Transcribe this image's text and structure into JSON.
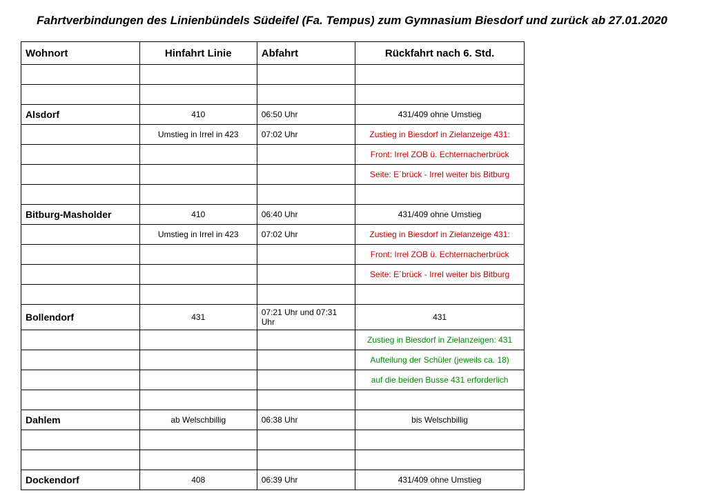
{
  "title": "Fahrtverbindungen des Linienbündels Südeifel (Fa. Tempus) zum Gymnasium Biesdorf und zurück ab 27.01.2020",
  "headers": {
    "wohnort": "Wohnort",
    "hinfahrt": "Hinfahrt Linie",
    "abfahrt": "Abfahrt",
    "rueckfahrt": "Rückfahrt nach 6. Std."
  },
  "rows": [
    {
      "c1": "",
      "c2": "",
      "c3": "",
      "c4": "",
      "cls": ""
    },
    {
      "c1": "",
      "c2": "",
      "c3": "",
      "c4": "",
      "cls": ""
    },
    {
      "c1": "Alsdorf",
      "c2": "410",
      "c3": "06:50 Uhr",
      "c4": "431/409 ohne Umstieg",
      "c1cls": "bold",
      "c2cls": "center",
      "c4cls": "center"
    },
    {
      "c1": "",
      "c2": "Umstieg in Irrel in 423",
      "c3": "07:02 Uhr",
      "c4": "Zustieg in Biesdorf in Zielanzeige 431:",
      "c2cls": "center",
      "c4cls": "center red"
    },
    {
      "c1": "",
      "c2": "",
      "c3": "",
      "c4": "Front: Irrel ZOB ü. Echternacherbrück",
      "c4cls": "center red"
    },
    {
      "c1": "",
      "c2": "",
      "c3": "",
      "c4": "Seite: E´brück - Irrel weiter bis Bitburg",
      "c4cls": "center red"
    },
    {
      "c1": "",
      "c2": "",
      "c3": "",
      "c4": "",
      "cls": ""
    },
    {
      "c1": "Bitburg-Masholder",
      "c2": "410",
      "c3": "06:40 Uhr",
      "c4": "431/409 ohne Umstieg",
      "c1cls": "bold",
      "c2cls": "center",
      "c4cls": "center"
    },
    {
      "c1": "",
      "c2": "Umstieg in Irrel in 423",
      "c3": "07:02 Uhr",
      "c4": "Zustieg in Biesdorf in Zielanzeige 431:",
      "c2cls": "center",
      "c4cls": "center red"
    },
    {
      "c1": "",
      "c2": "",
      "c3": "",
      "c4": "Front: Irrel ZOB ü. Echternacherbrück",
      "c4cls": "center red"
    },
    {
      "c1": "",
      "c2": "",
      "c3": "",
      "c4": "Seite: E´brück - Irrel weiter bis Bitburg",
      "c4cls": "center red"
    },
    {
      "c1": "",
      "c2": "",
      "c3": "",
      "c4": "",
      "cls": ""
    },
    {
      "c1": "Bollendorf",
      "c2": "431",
      "c3": "07:21 Uhr und 07:31 Uhr",
      "c4": "431",
      "c1cls": "bold",
      "c2cls": "center",
      "c4cls": "center"
    },
    {
      "c1": "",
      "c2": "",
      "c3": "",
      "c4": "Zustieg in Biesdorf in Zielanzeigen: 431",
      "c4cls": "center green"
    },
    {
      "c1": "",
      "c2": "",
      "c3": "",
      "c4": "Aufteilung der Schüler (jeweils ca. 18)",
      "c4cls": "center green"
    },
    {
      "c1": "",
      "c2": "",
      "c3": "",
      "c4": "auf die beiden Busse 431 erforderlich",
      "c4cls": "center green"
    },
    {
      "c1": "",
      "c2": "",
      "c3": "",
      "c4": "",
      "cls": ""
    },
    {
      "c1": "Dahlem",
      "c2": "ab Welschbillig",
      "c3": "06:38 Uhr",
      "c4": "bis Welschbillig",
      "c1cls": "bold",
      "c2cls": "center",
      "c4cls": "center"
    },
    {
      "c1": "",
      "c2": "",
      "c3": "",
      "c4": "",
      "cls": ""
    },
    {
      "c1": "",
      "c2": "",
      "c3": "",
      "c4": "",
      "cls": ""
    },
    {
      "c1": "Dockendorf",
      "c2": "408",
      "c3": "06:39 Uhr",
      "c4": "431/409 ohne Umstieg",
      "c1cls": "bold",
      "c2cls": "center",
      "c4cls": "center"
    }
  ]
}
